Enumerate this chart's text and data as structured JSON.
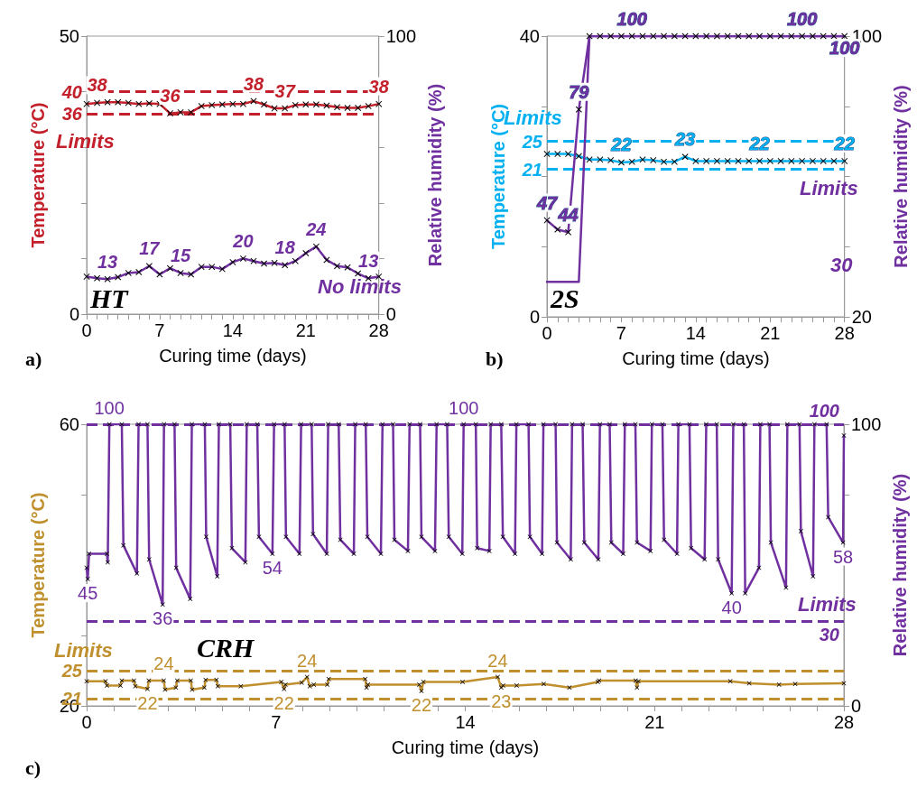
{
  "chart_data": [
    {
      "type": "line",
      "xlabel": "Curing time (days)",
      "ylabel": "Temperature (°C)",
      "y2label": "Relative humidity (%)",
      "marker": "cross",
      "annotations": [
        "a)",
        "HT",
        "Limits",
        "No limits"
      ],
      "x": [
        0,
        1,
        2,
        3,
        4,
        5,
        6,
        7,
        8,
        9,
        10,
        11,
        12,
        13,
        14,
        15,
        16,
        17,
        18,
        19,
        20,
        21,
        22,
        23,
        24,
        25,
        26,
        27,
        28
      ],
      "xlim": [
        0,
        28
      ],
      "xticks": [
        0,
        {
          "value": 1,
          "label": null
        },
        {
          "value": 2,
          "label": null
        },
        {
          "value": 3,
          "label": null
        },
        {
          "value": 4,
          "label": null
        },
        {
          "value": 5,
          "label": null
        },
        {
          "value": 6,
          "label": null
        },
        7,
        {
          "value": 8,
          "label": null
        },
        {
          "value": 9,
          "label": null
        },
        {
          "value": 10,
          "label": null
        },
        {
          "value": 11,
          "label": null
        },
        {
          "value": 12,
          "label": null
        },
        {
          "value": 13,
          "label": null
        },
        14,
        {
          "value": 15,
          "label": null
        },
        {
          "value": 16,
          "label": null
        },
        {
          "value": 17,
          "label": null
        },
        {
          "value": 18,
          "label": null
        },
        {
          "value": 19,
          "label": null
        },
        {
          "value": 20,
          "label": null
        },
        21,
        {
          "value": 22,
          "label": null
        },
        {
          "value": 23,
          "label": null
        },
        {
          "value": 24,
          "label": null
        },
        {
          "value": 25,
          "label": null
        },
        {
          "value": 26,
          "label": null
        },
        {
          "value": 27,
          "label": null
        },
        28
      ],
      "ylim": [
        0,
        50
      ],
      "yticks": [
        0,
        {
          "value": 10,
          "label": null
        },
        {
          "value": 20,
          "label": null
        },
        {
          "value": 30,
          "label": null
        },
        {
          "value": 40,
          "label": null
        },
        50
      ],
      "y2lim": [
        0,
        100
      ],
      "y2ticks": [
        0,
        {
          "value": 20,
          "label": null
        },
        {
          "value": 40,
          "label": null
        },
        {
          "value": 60,
          "label": null
        },
        {
          "value": 80,
          "label": null
        },
        100
      ],
      "series": [
        {
          "color": "#c3202b",
          "values": [
            37.8,
            38.0,
            38.1,
            38.1,
            38.0,
            37.8,
            37.9,
            37.8,
            36.1,
            36.3,
            36.3,
            37.4,
            37.6,
            37.7,
            37.8,
            37.8,
            38.3,
            37.7,
            37.0,
            37.0,
            37.6,
            37.7,
            37.7,
            37.5,
            37.2,
            37.1,
            37.1,
            37.4,
            37.8
          ],
          "value_labels": [
            null,
            "38",
            null,
            null,
            null,
            null,
            null,
            null,
            "36",
            null,
            null,
            null,
            null,
            null,
            null,
            null,
            "38",
            null,
            null,
            "37",
            null,
            null,
            null,
            null,
            null,
            null,
            null,
            null,
            "38"
          ]
        },
        {
          "color": "#7030a0",
          "axis": "y2",
          "values": [
            13.5,
            12.9,
            12.6,
            13.3,
            14.8,
            15.1,
            17.3,
            14.3,
            16.5,
            14.8,
            14.3,
            17.0,
            17.0,
            16.2,
            18.7,
            20.0,
            19.1,
            18.2,
            18.4,
            17.6,
            19.1,
            21.9,
            24.3,
            19.5,
            17.3,
            16.8,
            14.6,
            12.9,
            13.5
          ],
          "value_labels": [
            null,
            null,
            "13",
            null,
            null,
            null,
            "17",
            null,
            null,
            "15",
            null,
            null,
            null,
            null,
            null,
            "20",
            null,
            null,
            null,
            "18",
            null,
            null,
            "24",
            null,
            null,
            null,
            null,
            "13",
            null
          ]
        }
      ],
      "ref_lines": [
        {
          "axis": "y",
          "value": 40,
          "label": "40",
          "color": "#c3202b",
          "line_style": "dashed"
        },
        {
          "axis": "y",
          "value": 36,
          "label": "36",
          "color": "#c3202b",
          "line_style": "dashed"
        }
      ]
    },
    {
      "type": "line",
      "xlabel": "Curing time (days)",
      "ylabel": "Temperature (°C)",
      "y2label": "Relative humidity (%)",
      "marker": "cross",
      "annotations": [
        "b)",
        "2S",
        "Limits",
        "Limits",
        "30"
      ],
      "x": [
        0,
        1,
        2,
        3,
        4,
        5,
        6,
        7,
        8,
        9,
        10,
        11,
        12,
        13,
        14,
        15,
        16,
        17,
        18,
        19,
        20,
        21,
        22,
        23,
        24,
        25,
        26,
        27,
        28
      ],
      "xlim": [
        0,
        28
      ],
      "xticks": [
        0,
        {
          "value": 1,
          "label": null
        },
        {
          "value": 2,
          "label": null
        },
        {
          "value": 3,
          "label": null
        },
        {
          "value": 4,
          "label": null
        },
        {
          "value": 5,
          "label": null
        },
        {
          "value": 6,
          "label": null
        },
        7,
        {
          "value": 8,
          "label": null
        },
        {
          "value": 9,
          "label": null
        },
        {
          "value": 10,
          "label": null
        },
        {
          "value": 11,
          "label": null
        },
        {
          "value": 12,
          "label": null
        },
        {
          "value": 13,
          "label": null
        },
        14,
        {
          "value": 15,
          "label": null
        },
        {
          "value": 16,
          "label": null
        },
        {
          "value": 17,
          "label": null
        },
        {
          "value": 18,
          "label": null
        },
        {
          "value": 19,
          "label": null
        },
        {
          "value": 20,
          "label": null
        },
        21,
        {
          "value": 22,
          "label": null
        },
        {
          "value": 23,
          "label": null
        },
        {
          "value": 24,
          "label": null
        },
        {
          "value": 25,
          "label": null
        },
        {
          "value": 26,
          "label": null
        },
        {
          "value": 27,
          "label": null
        },
        28
      ],
      "ylim": [
        0,
        40
      ],
      "yticks": [
        0,
        {
          "value": 10,
          "label": null
        },
        {
          "value": 20,
          "label": null
        },
        {
          "value": 30,
          "label": null
        },
        40
      ],
      "y2lim": [
        20,
        100
      ],
      "y2ticks": [
        20,
        {
          "value": 40,
          "label": null
        },
        {
          "value": 60,
          "label": null
        },
        {
          "value": 80,
          "label": null
        },
        100
      ],
      "series": [
        {
          "color": "#00b0f0",
          "values": [
            23.2,
            23.2,
            23.2,
            22.9,
            22.4,
            22.4,
            22.3,
            22.0,
            22.1,
            22.4,
            22.3,
            22.1,
            22.1,
            22.8,
            22.2,
            22.2,
            22.2,
            22.2,
            22.2,
            22.2,
            22.2,
            22.2,
            22.2,
            22.2,
            22.2,
            22.2,
            22.2,
            22.2,
            22.2
          ],
          "value_labels": [
            null,
            null,
            null,
            null,
            null,
            null,
            null,
            "22",
            null,
            null,
            null,
            null,
            null,
            "23",
            null,
            null,
            null,
            null,
            null,
            null,
            "22",
            null,
            null,
            null,
            null,
            null,
            null,
            null,
            "22"
          ]
        },
        {
          "color": "#7030a0",
          "axis": "y2",
          "values": [
            47.5,
            44.9,
            44.1,
            79.1,
            100,
            100,
            100,
            100,
            100,
            100,
            100,
            100,
            100,
            100,
            100,
            100,
            100,
            100,
            100,
            100,
            100,
            100,
            100,
            100,
            100,
            100,
            100,
            100,
            100
          ],
          "value_labels": [
            "47",
            null,
            "44",
            "79",
            null,
            null,
            null,
            null,
            "100",
            null,
            null,
            null,
            null,
            null,
            null,
            null,
            null,
            null,
            null,
            null,
            null,
            null,
            null,
            null,
            "100",
            null,
            null,
            null,
            null
          ]
        },
        {
          "color": "#7030a0",
          "axis": "y2",
          "marker": "none",
          "x": [
            0,
            3,
            4,
            28
          ],
          "values": [
            30,
            30,
            100,
            100
          ],
          "value_labels": [
            null,
            null,
            null,
            "100"
          ]
        }
      ],
      "ref_lines": [
        {
          "axis": "y",
          "value": 25,
          "label": "25",
          "color": "#00b0f0",
          "line_style": "dashed"
        },
        {
          "axis": "y",
          "value": 21,
          "label": "21",
          "color": "#00b0f0",
          "line_style": "dashed"
        }
      ]
    },
    {
      "type": "line",
      "xlabel": "Curing time (days)",
      "ylabel": "Temperature (°C)",
      "y2label": "Relative humidity (%)",
      "marker": "cross",
      "annotations": [
        "c)",
        "CRH",
        "Limits",
        "Limits"
      ],
      "xlim": [
        0,
        28
      ],
      "xticks": [
        0,
        {
          "value": 1,
          "label": null
        },
        {
          "value": 2,
          "label": null
        },
        {
          "value": 3,
          "label": null
        },
        {
          "value": 4,
          "label": null
        },
        {
          "value": 5,
          "label": null
        },
        {
          "value": 6,
          "label": null
        },
        7,
        {
          "value": 8,
          "label": null
        },
        {
          "value": 9,
          "label": null
        },
        {
          "value": 10,
          "label": null
        },
        {
          "value": 11,
          "label": null
        },
        {
          "value": 12,
          "label": null
        },
        {
          "value": 13,
          "label": null
        },
        14,
        {
          "value": 15,
          "label": null
        },
        {
          "value": 16,
          "label": null
        },
        {
          "value": 17,
          "label": null
        },
        {
          "value": 18,
          "label": null
        },
        {
          "value": 19,
          "label": null
        },
        {
          "value": 20,
          "label": null
        },
        21,
        {
          "value": 22,
          "label": null
        },
        {
          "value": 23,
          "label": null
        },
        {
          "value": 24,
          "label": null
        },
        {
          "value": 25,
          "label": null
        },
        {
          "value": 26,
          "label": null
        },
        {
          "value": 27,
          "label": null
        },
        28
      ],
      "ylim": [
        20,
        60
      ],
      "yticks": [
        20,
        {
          "value": 30,
          "label": null
        },
        {
          "value": 50,
          "label": null
        },
        60
      ],
      "y2lim": [
        0,
        100
      ],
      "y2ticks": [
        0,
        {
          "value": 75,
          "label": null
        },
        100
      ],
      "series": [
        {
          "color": "#7030a0",
          "axis": "y2",
          "x": [
            0,
            0.04,
            0.09,
            0.75,
            0.78,
            0.84,
            1.3,
            1.36,
            1.86,
            1.92,
            2.25,
            2.31,
            2.81,
            2.86,
            3.25,
            3.31,
            3.83,
            3.89,
            4.37,
            4.42,
            4.83,
            4.89,
            5.31,
            5.37,
            5.87,
            5.92,
            6.31,
            6.37,
            6.87,
            6.93,
            7.32,
            7.37,
            7.87,
            7.93,
            8.32,
            8.37,
            8.88,
            8.93,
            9.32,
            9.38,
            9.88,
            9.93,
            10.32,
            10.38,
            10.88,
            10.94,
            11.33,
            11.38,
            11.88,
            11.94,
            12.33,
            12.38,
            12.88,
            12.94,
            13.33,
            13.39,
            13.89,
            13.94,
            14.39,
            14.44,
            14.89,
            14.94,
            15.33,
            15.39,
            15.84,
            15.89,
            16.34,
            16.39,
            16.84,
            16.89,
            17.34,
            17.39,
            17.9,
            17.95,
            18.34,
            18.4,
            18.92,
            18.98,
            19.34,
            19.4,
            19.84,
            19.9,
            20.29,
            20.35,
            20.85,
            20.9,
            21.29,
            21.35,
            21.83,
            21.88,
            22.29,
            22.35,
            22.85,
            22.91,
            23.3,
            23.35,
            23.85,
            23.91,
            24.3,
            24.35,
            24.86,
            24.91,
            25.25,
            25.3,
            25.86,
            25.91,
            26.36,
            26.41,
            26.86,
            26.91,
            27.36,
            27.42,
            27.97,
            28
          ],
          "values": [
            49,
            45,
            54,
            54,
            51,
            100,
            100,
            57,
            47,
            100,
            100,
            52,
            36,
            100,
            100,
            49,
            38,
            100,
            100,
            60,
            46,
            100,
            100,
            56,
            51,
            100,
            100,
            60,
            54,
            100,
            100,
            60,
            54,
            100,
            100,
            61,
            54,
            100,
            100,
            59,
            54,
            100,
            100,
            60,
            54,
            100,
            100,
            59,
            55,
            100,
            100,
            60,
            55,
            100,
            100,
            60,
            54,
            100,
            100,
            56,
            55,
            100,
            100,
            60,
            54,
            100,
            100,
            60,
            54,
            100,
            100,
            58,
            52,
            100,
            100,
            58,
            52,
            100,
            100,
            58,
            54,
            100,
            100,
            58,
            55,
            100,
            100,
            59,
            54,
            100,
            100,
            56,
            52,
            100,
            100,
            52,
            40,
            100,
            100,
            40,
            49,
            100,
            100,
            58,
            42,
            100,
            100,
            62,
            46,
            100,
            100,
            67,
            58,
            96
          ],
          "value_labels": [
            null,
            "45",
            null,
            null,
            null,
            "100",
            null,
            null,
            null,
            null,
            null,
            null,
            "36",
            null,
            null,
            null,
            null,
            null,
            null,
            null,
            null,
            null,
            null,
            null,
            null,
            null,
            null,
            null,
            "54",
            null,
            null,
            null,
            null,
            null,
            null,
            null,
            null,
            null,
            null,
            null,
            null,
            null,
            null,
            null,
            null,
            null,
            null,
            null,
            null,
            null,
            null,
            null,
            null,
            null,
            null,
            null,
            null,
            "100",
            null,
            null,
            null,
            null,
            null,
            null,
            null,
            null,
            null,
            null,
            null,
            null,
            null,
            null,
            null,
            null,
            null,
            null,
            null,
            null,
            null,
            null,
            null,
            null,
            null,
            null,
            null,
            null,
            null,
            null,
            null,
            null,
            null,
            null,
            null,
            null,
            null,
            null,
            "40",
            null,
            null,
            null,
            null,
            null,
            null,
            null,
            null,
            null,
            null,
            null,
            null,
            null,
            null,
            null,
            "58",
            null
          ]
        },
        {
          "color": "#c0902f",
          "x": [
            0,
            0.7,
            0.75,
            1.25,
            1.3,
            1.75,
            1.8,
            2.25,
            2.3,
            2.85,
            2.9,
            3.3,
            3.35,
            3.85,
            3.9,
            4.35,
            4.4,
            4.8,
            4.85,
            5.7,
            7.2,
            7.3,
            7.35,
            7.95,
            8.15,
            8.25,
            8.4,
            8.9,
            8.95,
            10.3,
            10.35,
            10.4,
            12.3,
            12.38,
            12.45,
            13.9,
            15.2,
            15.33,
            15.4,
            15.9,
            16.9,
            17.85,
            18.9,
            18.95,
            20.3,
            20.35,
            20.4,
            23.8,
            24.5,
            25.6,
            26.2,
            28
          ],
          "values": [
            23.5,
            23.5,
            22.9,
            22.9,
            23.6,
            23.6,
            22.8,
            22.4,
            23.6,
            23.6,
            22.3,
            22.6,
            23.6,
            23.6,
            22.3,
            22.6,
            23.7,
            23.7,
            22.8,
            22.8,
            23.4,
            22.4,
            23.0,
            23.3,
            24.1,
            22.8,
            23.0,
            23.0,
            23.8,
            23.8,
            22.6,
            23.0,
            23.0,
            22.1,
            23.4,
            23.4,
            24.1,
            22.6,
            22.9,
            22.9,
            23.1,
            22.6,
            23.4,
            23.6,
            23.6,
            22.6,
            23.5,
            23.5,
            23.2,
            23.0,
            23.1,
            23.2
          ],
          "value_labels": [
            null,
            null,
            null,
            null,
            null,
            null,
            null,
            "22",
            null,
            "24",
            null,
            null,
            null,
            null,
            null,
            null,
            null,
            null,
            null,
            null,
            null,
            "22",
            null,
            null,
            "24",
            null,
            null,
            null,
            null,
            null,
            null,
            null,
            null,
            "22",
            null,
            null,
            "24",
            "23",
            null,
            null,
            null,
            null,
            null,
            null,
            null,
            null,
            null,
            null,
            null,
            null,
            null,
            null
          ]
        }
      ],
      "ref_lines": [
        {
          "axis": "y2",
          "value": 100,
          "label": "100",
          "color": "#7030a0",
          "line_style": "dashed"
        },
        {
          "axis": "y2",
          "value": 30,
          "label": "30",
          "color": "#7030a0",
          "line_style": "dashed"
        },
        {
          "axis": "y",
          "value": 25,
          "label": "25",
          "color": "#c0902f",
          "line_style": "dashed"
        },
        {
          "axis": "y",
          "value": 21,
          "label": "21",
          "color": "#c0902f",
          "line_style": "dashed"
        }
      ]
    }
  ]
}
